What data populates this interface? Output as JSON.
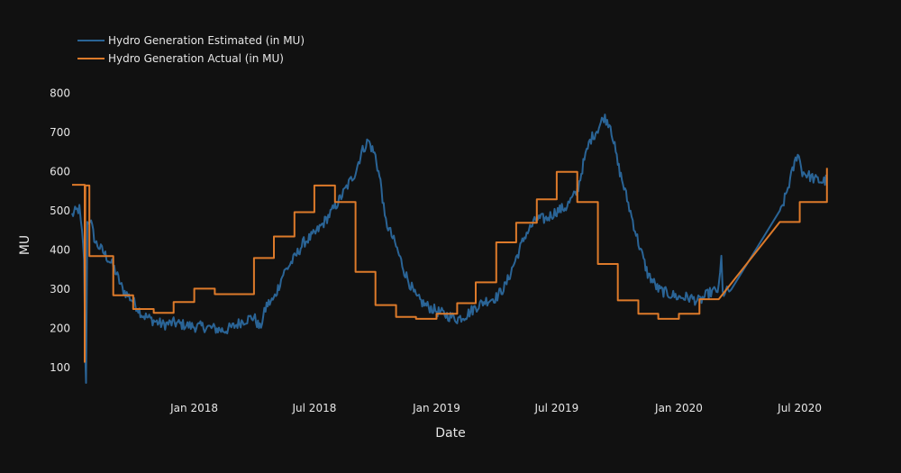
{
  "chart_data": {
    "type": "line",
    "title": "",
    "xlabel": "Date",
    "ylabel": "MU",
    "grid": false,
    "legend_position": "top-left",
    "xlim": [
      "2017-07-01",
      "2020-08-14"
    ],
    "ylim": [
      50,
      820
    ],
    "x_ticks": [
      "2018-01-01",
      "2018-07-01",
      "2019-01-01",
      "2019-07-01",
      "2020-01-01",
      "2020-07-01"
    ],
    "x_tick_labels": [
      "Jan 2018",
      "Jul 2018",
      "Jan 2019",
      "Jul 2019",
      "Jan 2020",
      "Jul 2020"
    ],
    "y_ticks": [
      100,
      200,
      300,
      400,
      500,
      600,
      700,
      800
    ],
    "y_tick_labels": [
      "100",
      "200",
      "300",
      "400",
      "500",
      "600",
      "700",
      "800"
    ],
    "series": [
      {
        "name": "Hydro Generation Estimated (in MU)",
        "color": "#2a6496",
        "style": "noisy",
        "points": [
          [
            "2017-07-01",
            490
          ],
          [
            "2017-07-07",
            500
          ],
          [
            "2017-07-12",
            505
          ],
          [
            "2017-07-16",
            440
          ],
          [
            "2017-07-19",
            380
          ],
          [
            "2017-07-21",
            120
          ],
          [
            "2017-07-22",
            70
          ],
          [
            "2017-07-24",
            470
          ],
          [
            "2017-07-28",
            480
          ],
          [
            "2017-08-05",
            420
          ],
          [
            "2017-08-15",
            400
          ],
          [
            "2017-09-01",
            360
          ],
          [
            "2017-09-15",
            300
          ],
          [
            "2017-10-01",
            270
          ],
          [
            "2017-10-15",
            235
          ],
          [
            "2017-11-01",
            220
          ],
          [
            "2017-11-15",
            210
          ],
          [
            "2017-12-01",
            215
          ],
          [
            "2017-12-15",
            210
          ],
          [
            "2018-01-01",
            205
          ],
          [
            "2018-01-15",
            205
          ],
          [
            "2018-02-01",
            200
          ],
          [
            "2018-02-15",
            195
          ],
          [
            "2018-03-01",
            205
          ],
          [
            "2018-03-15",
            220
          ],
          [
            "2018-04-01",
            230
          ],
          [
            "2018-04-10",
            200
          ],
          [
            "2018-04-20",
            260
          ],
          [
            "2018-05-01",
            275
          ],
          [
            "2018-05-15",
            340
          ],
          [
            "2018-06-01",
            380
          ],
          [
            "2018-06-15",
            420
          ],
          [
            "2018-07-01",
            440
          ],
          [
            "2018-07-15",
            470
          ],
          [
            "2018-08-01",
            510
          ],
          [
            "2018-08-15",
            550
          ],
          [
            "2018-09-01",
            600
          ],
          [
            "2018-09-10",
            650
          ],
          [
            "2018-09-20",
            680
          ],
          [
            "2018-10-01",
            640
          ],
          [
            "2018-10-10",
            560
          ],
          [
            "2018-10-15",
            480
          ],
          [
            "2018-11-01",
            410
          ],
          [
            "2018-11-15",
            340
          ],
          [
            "2018-12-01",
            280
          ],
          [
            "2018-12-15",
            260
          ],
          [
            "2019-01-01",
            245
          ],
          [
            "2019-01-15",
            235
          ],
          [
            "2019-02-01",
            225
          ],
          [
            "2019-02-15",
            235
          ],
          [
            "2019-03-01",
            255
          ],
          [
            "2019-03-15",
            270
          ],
          [
            "2019-04-01",
            280
          ],
          [
            "2019-04-15",
            310
          ],
          [
            "2019-05-01",
            380
          ],
          [
            "2019-05-15",
            440
          ],
          [
            "2019-06-01",
            480
          ],
          [
            "2019-06-15",
            480
          ],
          [
            "2019-07-01",
            500
          ],
          [
            "2019-07-15",
            510
          ],
          [
            "2019-08-01",
            550
          ],
          [
            "2019-08-10",
            620
          ],
          [
            "2019-08-20",
            680
          ],
          [
            "2019-09-01",
            710
          ],
          [
            "2019-09-10",
            740
          ],
          [
            "2019-09-20",
            720
          ],
          [
            "2019-10-01",
            620
          ],
          [
            "2019-10-15",
            530
          ],
          [
            "2019-11-01",
            420
          ],
          [
            "2019-11-15",
            340
          ],
          [
            "2019-12-01",
            300
          ],
          [
            "2019-12-15",
            290
          ],
          [
            "2020-01-01",
            280
          ],
          [
            "2020-01-15",
            280
          ],
          [
            "2020-02-01",
            270
          ],
          [
            "2020-02-15",
            290
          ],
          [
            "2020-03-01",
            300
          ],
          [
            "2020-03-05",
            380
          ],
          [
            "2020-03-07",
            290
          ],
          [
            "2020-03-20",
            300
          ],
          [
            "2020-06-01",
            490
          ],
          [
            "2020-06-10",
            540
          ],
          [
            "2020-06-20",
            600
          ],
          [
            "2020-06-28",
            650
          ],
          [
            "2020-07-05",
            600
          ],
          [
            "2020-07-15",
            590
          ],
          [
            "2020-07-25",
            580
          ],
          [
            "2020-08-05",
            575
          ],
          [
            "2020-08-11",
            580
          ]
        ]
      },
      {
        "name": "Hydro Generation Actual (in MU)",
        "color": "#dd7a2a",
        "style": "step",
        "points": [
          [
            "2017-07-01",
            567
          ],
          [
            "2017-07-20",
            567
          ],
          [
            "2017-07-20",
            115
          ],
          [
            "2017-07-21",
            565
          ],
          [
            "2017-07-27",
            565
          ],
          [
            "2017-07-27",
            385
          ],
          [
            "2017-09-01",
            385
          ],
          [
            "2017-09-01",
            285
          ],
          [
            "2017-10-01",
            285
          ],
          [
            "2017-10-01",
            250
          ],
          [
            "2017-11-01",
            250
          ],
          [
            "2017-11-01",
            240
          ],
          [
            "2017-12-01",
            240
          ],
          [
            "2017-12-01",
            268
          ],
          [
            "2018-01-01",
            268
          ],
          [
            "2018-01-01",
            302
          ],
          [
            "2018-02-01",
            302
          ],
          [
            "2018-02-01",
            288
          ],
          [
            "2018-03-01",
            288
          ],
          [
            "2018-04-01",
            288
          ],
          [
            "2018-04-01",
            380
          ],
          [
            "2018-05-01",
            380
          ],
          [
            "2018-05-01",
            435
          ],
          [
            "2018-06-01",
            435
          ],
          [
            "2018-06-01",
            497
          ],
          [
            "2018-07-01",
            497
          ],
          [
            "2018-07-01",
            565
          ],
          [
            "2018-08-01",
            565
          ],
          [
            "2018-08-01",
            523
          ],
          [
            "2018-09-01",
            523
          ],
          [
            "2018-09-01",
            345
          ],
          [
            "2018-10-01",
            345
          ],
          [
            "2018-10-01",
            260
          ],
          [
            "2018-11-01",
            260
          ],
          [
            "2018-11-01",
            230
          ],
          [
            "2018-12-01",
            230
          ],
          [
            "2018-12-01",
            225
          ],
          [
            "2019-01-01",
            225
          ],
          [
            "2019-01-01",
            238
          ],
          [
            "2019-02-01",
            238
          ],
          [
            "2019-02-01",
            265
          ],
          [
            "2019-03-01",
            265
          ],
          [
            "2019-03-01",
            318
          ],
          [
            "2019-04-01",
            318
          ],
          [
            "2019-04-01",
            420
          ],
          [
            "2019-05-01",
            420
          ],
          [
            "2019-05-01",
            470
          ],
          [
            "2019-06-01",
            470
          ],
          [
            "2019-06-01",
            530
          ],
          [
            "2019-07-01",
            530
          ],
          [
            "2019-07-01",
            600
          ],
          [
            "2019-08-01",
            600
          ],
          [
            "2019-08-01",
            523
          ],
          [
            "2019-09-01",
            523
          ],
          [
            "2019-09-01",
            365
          ],
          [
            "2019-10-01",
            365
          ],
          [
            "2019-10-01",
            272
          ],
          [
            "2019-11-01",
            272
          ],
          [
            "2019-11-01",
            238
          ],
          [
            "2019-12-01",
            238
          ],
          [
            "2019-12-01",
            225
          ],
          [
            "2020-01-01",
            225
          ],
          [
            "2020-01-01",
            238
          ],
          [
            "2020-02-01",
            238
          ],
          [
            "2020-02-01",
            275
          ],
          [
            "2020-03-01",
            275
          ],
          [
            "2020-06-01",
            472
          ],
          [
            "2020-07-01",
            472
          ],
          [
            "2020-07-01",
            523
          ],
          [
            "2020-08-11",
            523
          ],
          [
            "2020-08-11",
            610
          ]
        ]
      }
    ]
  }
}
